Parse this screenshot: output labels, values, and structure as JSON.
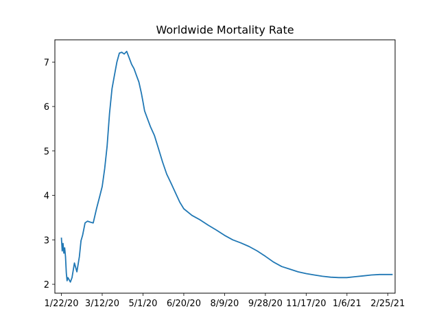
{
  "chart_data": {
    "type": "line",
    "title": "Worldwide Mortality Rate",
    "xlabel": "",
    "ylabel": "",
    "x_ticks": [
      "1/22/20",
      "3/12/20",
      "5/1/20",
      "6/20/20",
      "8/9/20",
      "9/28/20",
      "11/17/20",
      "1/6/21",
      "2/25/21"
    ],
    "y_ticks": [
      "2",
      "3",
      "4",
      "5",
      "6",
      "7"
    ],
    "xlim": [
      "1/14/20",
      "3/6/21"
    ],
    "ylim": [
      1.8,
      7.5
    ],
    "grid": false,
    "legend": "none",
    "series": [
      {
        "color": "#1f77b4",
        "x": [
          "1/22/20",
          "1/23/20",
          "1/24/20",
          "1/25/20",
          "1/26/20",
          "1/27/20",
          "1/28/20",
          "1/29/20",
          "1/30/20",
          "1/31/20",
          "2/2/20",
          "2/4/20",
          "2/7/20",
          "2/10/20",
          "2/13/20",
          "2/14/20",
          "2/15/20",
          "2/17/20",
          "2/20/20",
          "2/23/20",
          "2/26/20",
          "3/1/20",
          "3/5/20",
          "3/9/20",
          "3/12/20",
          "3/15/20",
          "3/18/20",
          "3/21/20",
          "3/24/20",
          "3/27/20",
          "3/30/20",
          "4/2/20",
          "4/5/20",
          "4/8/20",
          "4/11/20",
          "4/14/20",
          "4/17/20",
          "4/20/20",
          "4/23/20",
          "4/26/20",
          "4/29/20",
          "5/1/20",
          "5/3/20",
          "5/6/20",
          "5/10/20",
          "5/15/20",
          "5/20/20",
          "5/25/20",
          "5/30/20",
          "6/5/20",
          "6/10/20",
          "6/15/20",
          "6/20/20",
          "6/30/20",
          "7/10/20",
          "7/20/20",
          "7/30/20",
          "8/9/20",
          "8/19/20",
          "8/29/20",
          "9/8/20",
          "9/18/20",
          "9/28/20",
          "10/8/20",
          "10/18/20",
          "10/28/20",
          "11/7/20",
          "11/17/20",
          "11/27/20",
          "12/7/20",
          "12/17/20",
          "12/27/20",
          "1/6/21",
          "1/16/21",
          "1/26/21",
          "2/5/21",
          "2/15/21",
          "2/25/21",
          "3/3/21"
        ],
        "values": [
          3.05,
          2.75,
          2.92,
          2.7,
          2.82,
          2.62,
          2.25,
          2.08,
          2.15,
          2.12,
          2.05,
          2.15,
          2.48,
          2.28,
          2.62,
          2.8,
          2.98,
          3.1,
          3.38,
          3.42,
          3.4,
          3.38,
          3.7,
          3.98,
          4.2,
          4.6,
          5.1,
          5.85,
          6.4,
          6.7,
          7.0,
          7.2,
          7.22,
          7.18,
          7.24,
          7.1,
          6.95,
          6.85,
          6.7,
          6.55,
          6.3,
          6.1,
          5.9,
          5.75,
          5.55,
          5.35,
          5.05,
          4.75,
          4.48,
          4.25,
          4.05,
          3.85,
          3.7,
          3.55,
          3.45,
          3.33,
          3.22,
          3.1,
          3.0,
          2.93,
          2.85,
          2.75,
          2.63,
          2.5,
          2.4,
          2.34,
          2.28,
          2.24,
          2.21,
          2.18,
          2.16,
          2.15,
          2.15,
          2.17,
          2.19,
          2.21,
          2.22,
          2.22,
          2.22
        ]
      }
    ]
  }
}
